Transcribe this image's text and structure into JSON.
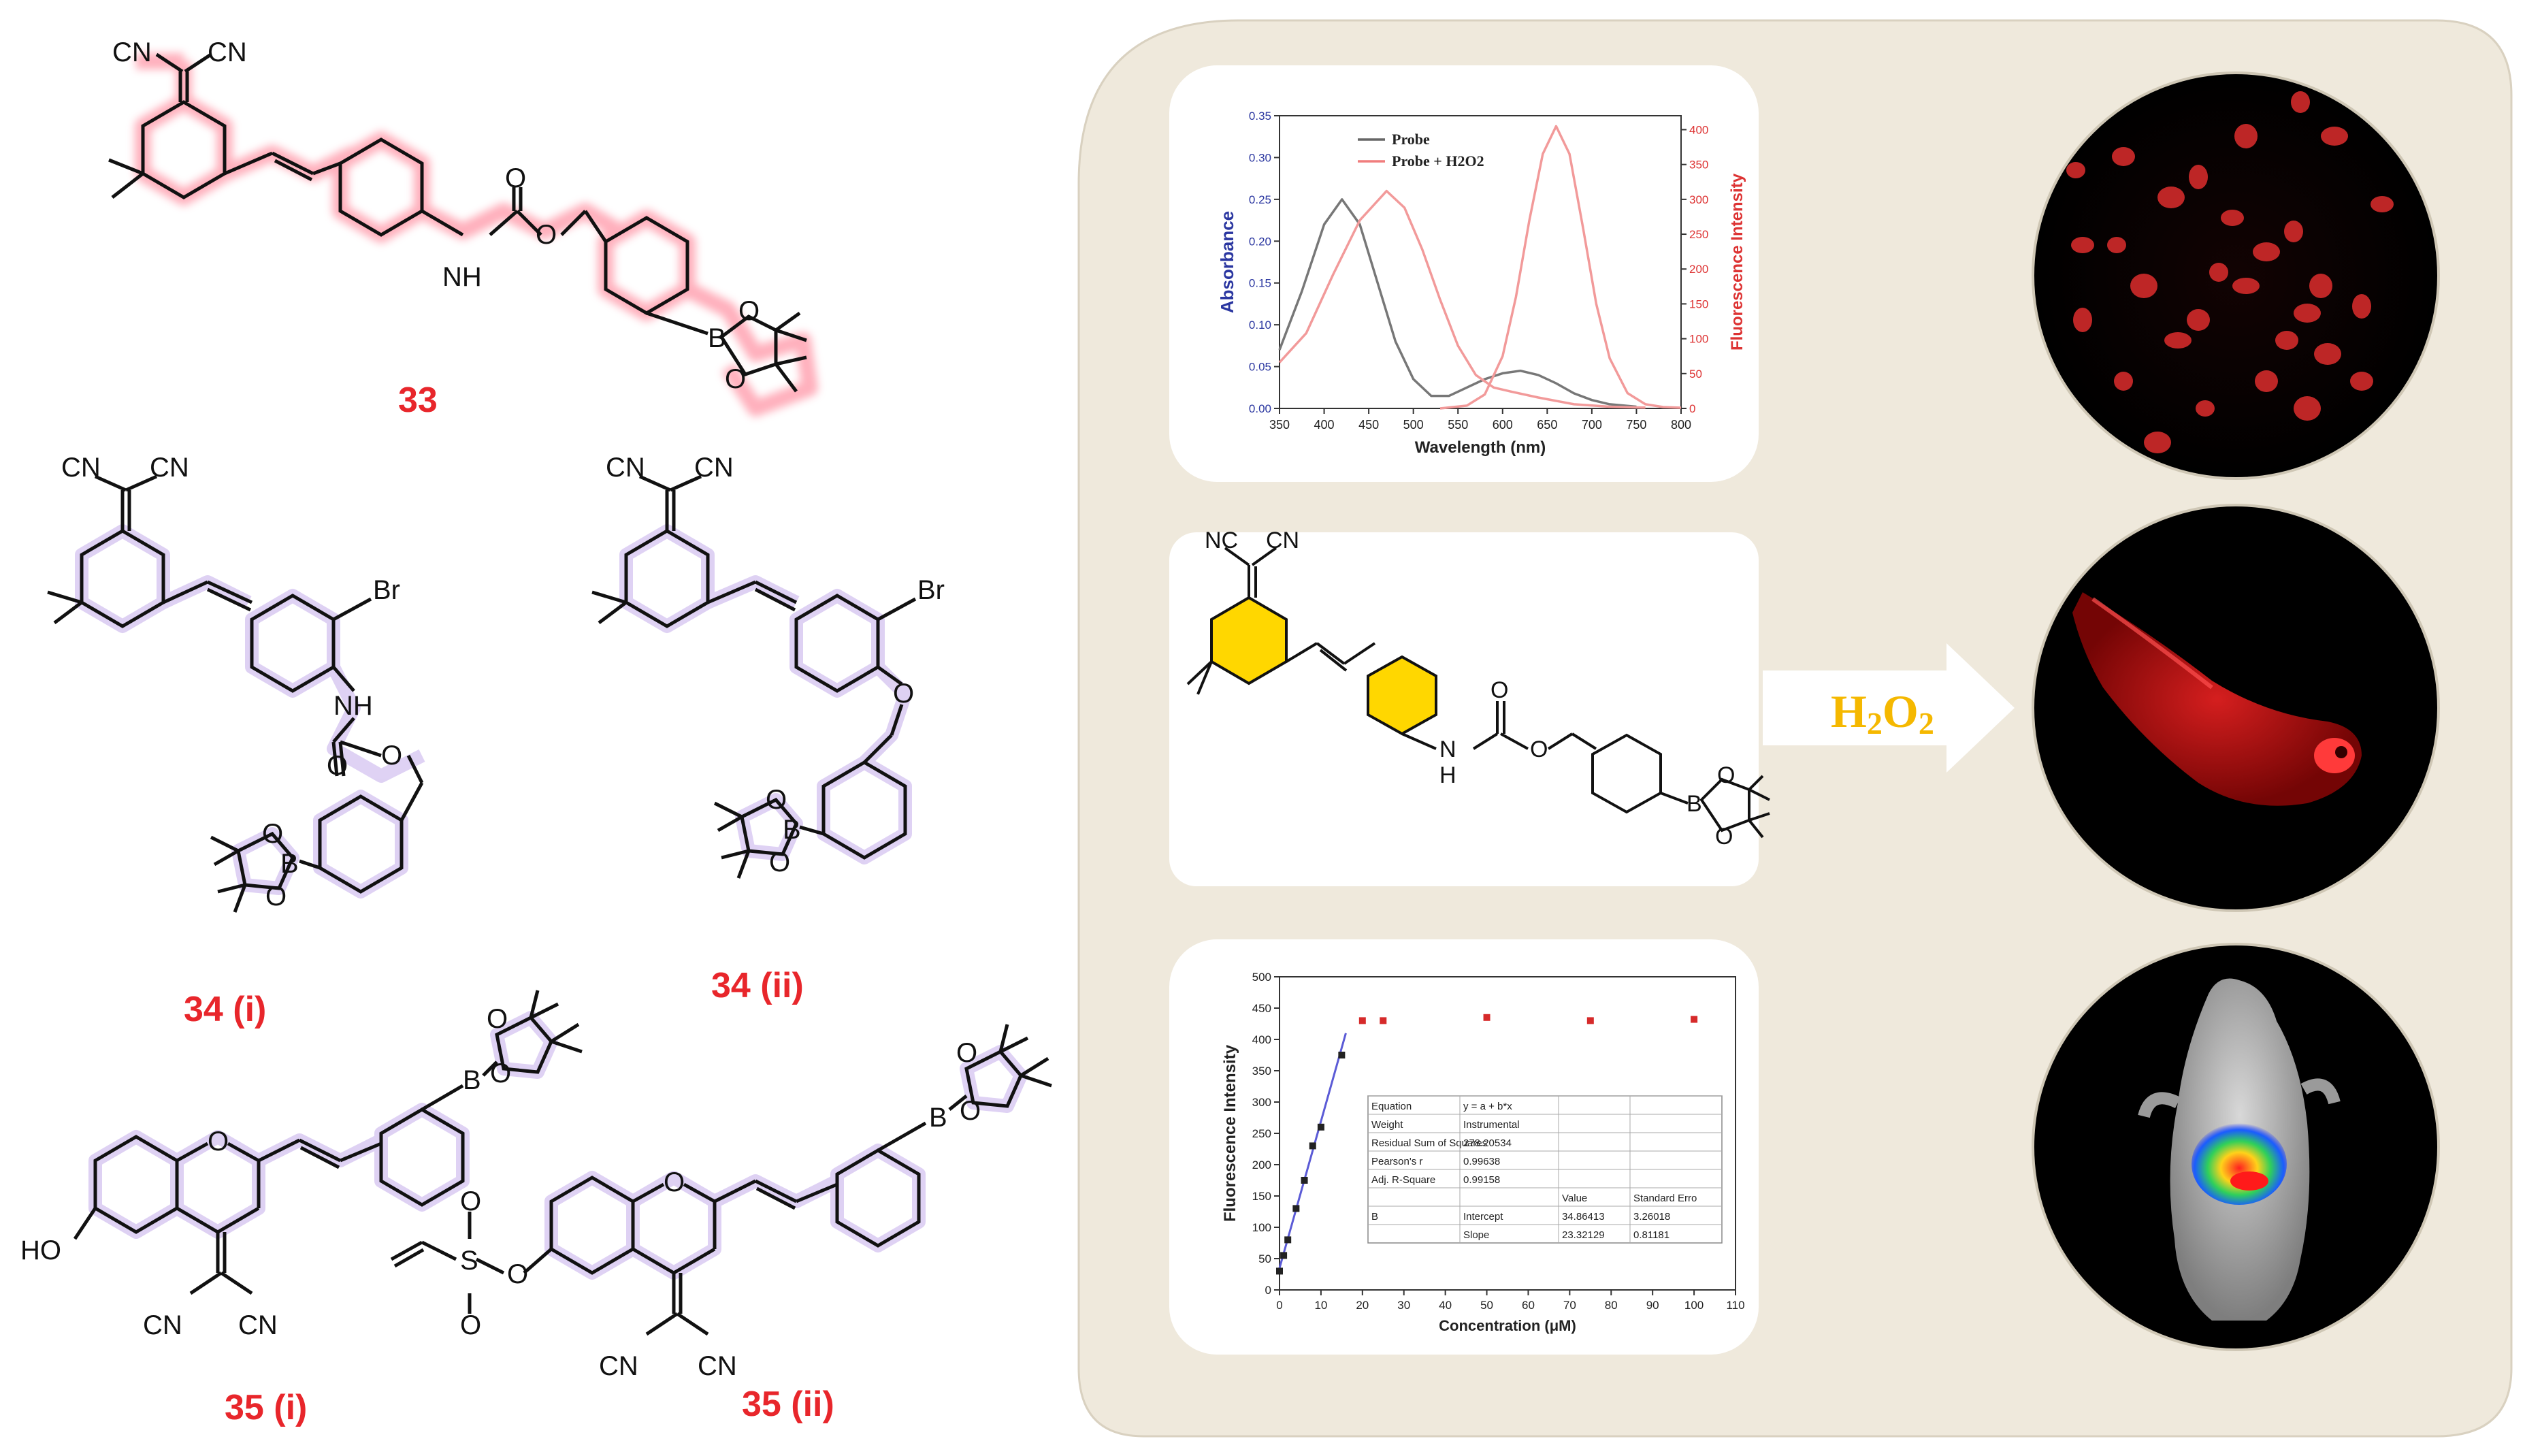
{
  "compounds": [
    {
      "id": "33",
      "label": "33",
      "glow": "#ff6f86"
    },
    {
      "id": "34i",
      "label": "34 (i)",
      "glow": "#b79be6"
    },
    {
      "id": "34ii",
      "label": "34 (ii)",
      "glow": "#b79be6"
    },
    {
      "id": "35i",
      "label": "35 (i)",
      "glow": "#b79be6"
    },
    {
      "id": "35ii",
      "label": "35 (ii)",
      "glow": "#b79be6"
    }
  ],
  "atoms": {
    "cn": "CN",
    "nc": "NC",
    "nh": "NH",
    "n": "N",
    "h": "H",
    "o": "O",
    "b": "B",
    "br": "Br",
    "ho": "HO",
    "s": "S"
  },
  "panel_bg": "#efe9dc",
  "arrow_label": "H2O2",
  "arrow_label_parts": {
    "base": "H",
    "sub1": "2",
    "mid": "O",
    "sub2": "2"
  },
  "arrow_label_color": "#f5b800",
  "spectrum_chart": {
    "type": "line",
    "xlabel": "Wavelength (nm)",
    "ylabel_left": "Absorbance",
    "ylabel_right": "Fluorescence Intensity",
    "x_ticks": [
      "350",
      "400",
      "450",
      "500",
      "550",
      "600",
      "650",
      "700",
      "750",
      "800"
    ],
    "y_left_ticks": [
      "0.00",
      "0.05",
      "0.10",
      "0.15",
      "0.20",
      "0.25",
      "0.30",
      "0.35"
    ],
    "y_right_ticks": [
      "0",
      "50",
      "100",
      "150",
      "200",
      "250",
      "300",
      "350",
      "400"
    ],
    "xlim": [
      350,
      800
    ],
    "ylim_left": [
      0,
      0.35
    ],
    "ylim_right": [
      0,
      420
    ],
    "legend": [
      {
        "label": "Probe",
        "color": "#666666"
      },
      {
        "label": "Probe + H2O2",
        "color": "#f07d7d"
      }
    ],
    "series": [
      {
        "name": "Probe",
        "axis": "left",
        "color": "#777777",
        "points": [
          [
            350,
            0.07
          ],
          [
            375,
            0.14
          ],
          [
            400,
            0.22
          ],
          [
            420,
            0.25
          ],
          [
            440,
            0.22
          ],
          [
            460,
            0.15
          ],
          [
            480,
            0.08
          ],
          [
            500,
            0.035
          ],
          [
            520,
            0.015
          ],
          [
            540,
            0.015
          ],
          [
            560,
            0.025
          ],
          [
            580,
            0.035
          ],
          [
            600,
            0.042
          ],
          [
            620,
            0.045
          ],
          [
            640,
            0.04
          ],
          [
            660,
            0.03
          ],
          [
            680,
            0.018
          ],
          [
            700,
            0.01
          ],
          [
            720,
            0.005
          ],
          [
            750,
            0.002
          ]
        ]
      },
      {
        "name": "Probe + H2O2",
        "axis": "left",
        "color": "#f29a9a",
        "points": [
          [
            350,
            0.055
          ],
          [
            380,
            0.09
          ],
          [
            410,
            0.16
          ],
          [
            440,
            0.225
          ],
          [
            470,
            0.26
          ],
          [
            490,
            0.24
          ],
          [
            510,
            0.19
          ],
          [
            530,
            0.13
          ],
          [
            550,
            0.075
          ],
          [
            570,
            0.04
          ],
          [
            590,
            0.025
          ],
          [
            610,
            0.02
          ],
          [
            640,
            0.013
          ],
          [
            680,
            0.005
          ],
          [
            720,
            0.002
          ],
          [
            760,
            0.001
          ]
        ]
      },
      {
        "name": "Fluorescence",
        "axis": "right",
        "color": "#f29a9a",
        "points": [
          [
            530,
            0
          ],
          [
            560,
            4
          ],
          [
            580,
            20
          ],
          [
            600,
            75
          ],
          [
            615,
            160
          ],
          [
            630,
            270
          ],
          [
            645,
            365
          ],
          [
            660,
            405
          ],
          [
            675,
            365
          ],
          [
            690,
            260
          ],
          [
            705,
            150
          ],
          [
            720,
            72
          ],
          [
            740,
            22
          ],
          [
            760,
            6
          ],
          [
            780,
            2
          ],
          [
            800,
            1
          ]
        ]
      }
    ]
  },
  "calibration_chart": {
    "type": "scatter",
    "xlabel": "Concentration (μM)",
    "ylabel": "Fluorescence Intensity",
    "x_ticks": [
      "0",
      "10",
      "20",
      "30",
      "40",
      "50",
      "60",
      "70",
      "80",
      "90",
      "100",
      "110"
    ],
    "y_ticks": [
      "0",
      "50",
      "100",
      "150",
      "200",
      "250",
      "300",
      "350",
      "400",
      "450",
      "500"
    ],
    "xlim": [
      0,
      110
    ],
    "ylim": [
      0,
      500
    ],
    "points": [
      [
        0,
        30
      ],
      [
        1,
        55
      ],
      [
        2,
        80
      ],
      [
        4,
        130
      ],
      [
        6,
        175
      ],
      [
        8,
        230
      ],
      [
        10,
        260
      ],
      [
        15,
        375
      ],
      [
        20,
        430
      ],
      [
        25,
        430
      ],
      [
        50,
        435
      ],
      [
        75,
        430
      ],
      [
        100,
        432
      ]
    ],
    "fit_line": [
      [
        0,
        34.86
      ],
      [
        16,
        410
      ]
    ],
    "table": {
      "rows": [
        [
          "Equation",
          "y = a + b*x",
          "",
          ""
        ],
        [
          "Weight",
          "Instrumental",
          "",
          ""
        ],
        [
          "Residual Sum of Squares",
          "278.20534",
          "",
          ""
        ],
        [
          "Pearson's r",
          "0.99638",
          "",
          ""
        ],
        [
          "Adj. R-Square",
          "0.99158",
          "",
          ""
        ],
        [
          "",
          "",
          "Value",
          "Standard Erro"
        ],
        [
          "B",
          "Intercept",
          "34.86413",
          "3.26018"
        ],
        [
          "",
          "Slope",
          "23.32129",
          "0.81181"
        ]
      ]
    }
  }
}
